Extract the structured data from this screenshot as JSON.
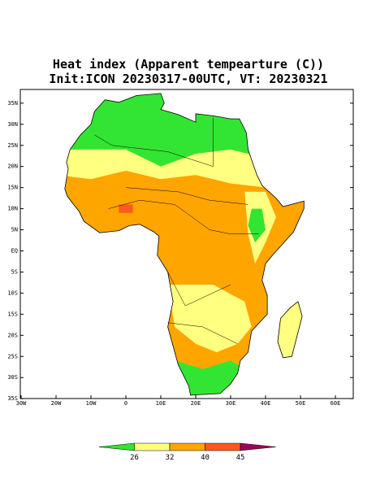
{
  "map": {
    "title": "Heat index (Apparent tempearture (C))",
    "subtitle": "Init:ICON 20230317-00UTC, VT: 20230321",
    "lat_labels": [
      "35N",
      "30N",
      "25N",
      "20N",
      "15N",
      "10N",
      "5N",
      "EQ",
      "5S",
      "10S",
      "15S",
      "20S",
      "25S",
      "30S",
      "35S"
    ],
    "lon_labels": [
      "30W",
      "20W",
      "10W",
      "0",
      "10E",
      "20E",
      "30E",
      "40E",
      "50E",
      "60E"
    ],
    "colorbar": {
      "labels": [
        26,
        32,
        40,
        45
      ],
      "colors": [
        "#33e533",
        "#ffff80",
        "#ffa500",
        "#ff5a1e",
        "#a0005a"
      ]
    }
  }
}
